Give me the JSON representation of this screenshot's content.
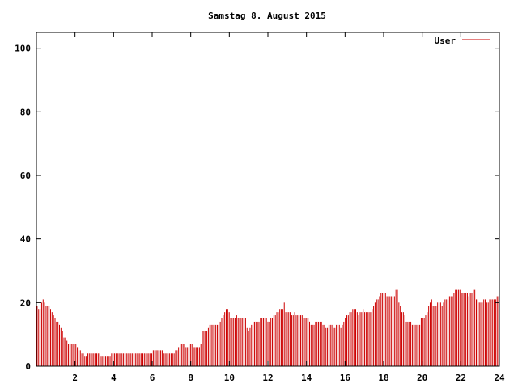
{
  "chart_data": {
    "type": "bar",
    "title": "Samstag 8. August 2015",
    "xlabel": "",
    "ylabel": "",
    "xlim": [
      0,
      24
    ],
    "ylim": [
      0,
      105
    ],
    "xticks": [
      2,
      4,
      6,
      8,
      10,
      12,
      14,
      16,
      18,
      20,
      22,
      24
    ],
    "yticks": [
      0,
      20,
      40,
      60,
      80,
      100
    ],
    "legend_position": "top-right",
    "grid": false,
    "series": [
      {
        "name": "User",
        "color": "#cc0000",
        "x_step_hours": 0.0833,
        "values": [
          19,
          18,
          18,
          20,
          21,
          20,
          19,
          19,
          19,
          18,
          17,
          16,
          15,
          14,
          14,
          13,
          12,
          11,
          9,
          9,
          8,
          7,
          7,
          7,
          7,
          7,
          7,
          6,
          5,
          5,
          4,
          4,
          3,
          3,
          4,
          4,
          4,
          4,
          4,
          4,
          4,
          4,
          4,
          3,
          3,
          3,
          3,
          3,
          3,
          3,
          4,
          4,
          4,
          4,
          4,
          4,
          4,
          4,
          4,
          4,
          4,
          4,
          4,
          4,
          4,
          4,
          4,
          4,
          4,
          4,
          4,
          4,
          4,
          4,
          4,
          4,
          4,
          4,
          5,
          5,
          5,
          5,
          5,
          5,
          5,
          4,
          4,
          4,
          4,
          4,
          4,
          4,
          4,
          5,
          5,
          6,
          6,
          7,
          7,
          7,
          6,
          6,
          6,
          7,
          7,
          6,
          6,
          6,
          6,
          6,
          7,
          11,
          11,
          11,
          11,
          12,
          13,
          13,
          13,
          13,
          13,
          13,
          13,
          14,
          15,
          16,
          17,
          18,
          18,
          17,
          15,
          15,
          15,
          15,
          16,
          15,
          15,
          15,
          15,
          15,
          15,
          12,
          11,
          12,
          13,
          14,
          14,
          14,
          14,
          14,
          15,
          15,
          15,
          15,
          15,
          14,
          14,
          15,
          15,
          16,
          16,
          17,
          17,
          18,
          18,
          18,
          20,
          17,
          17,
          17,
          17,
          16,
          16,
          17,
          16,
          16,
          16,
          16,
          16,
          15,
          15,
          15,
          15,
          14,
          13,
          13,
          13,
          14,
          14,
          14,
          14,
          14,
          13,
          13,
          12,
          12,
          13,
          13,
          13,
          12,
          12,
          13,
          13,
          13,
          12,
          13,
          14,
          15,
          16,
          16,
          17,
          17,
          18,
          18,
          18,
          17,
          16,
          17,
          17,
          18,
          17,
          17,
          17,
          17,
          17,
          18,
          19,
          20,
          21,
          21,
          22,
          23,
          23,
          23,
          23,
          22,
          22,
          22,
          22,
          22,
          22,
          24,
          24,
          20,
          19,
          17,
          17,
          16,
          14,
          14,
          14,
          14,
          13,
          13,
          13,
          13,
          13,
          13,
          15,
          15,
          15,
          16,
          17,
          19,
          20,
          21,
          19,
          19,
          19,
          20,
          20,
          20,
          19,
          20,
          21,
          21,
          21,
          22,
          22,
          22,
          23,
          24,
          24,
          24,
          24,
          23,
          23,
          23,
          23,
          23,
          22,
          23,
          23,
          24,
          24,
          21,
          21,
          20,
          20,
          20,
          21,
          21,
          20,
          20,
          21,
          21,
          21,
          21,
          21,
          22,
          22
        ]
      }
    ]
  }
}
